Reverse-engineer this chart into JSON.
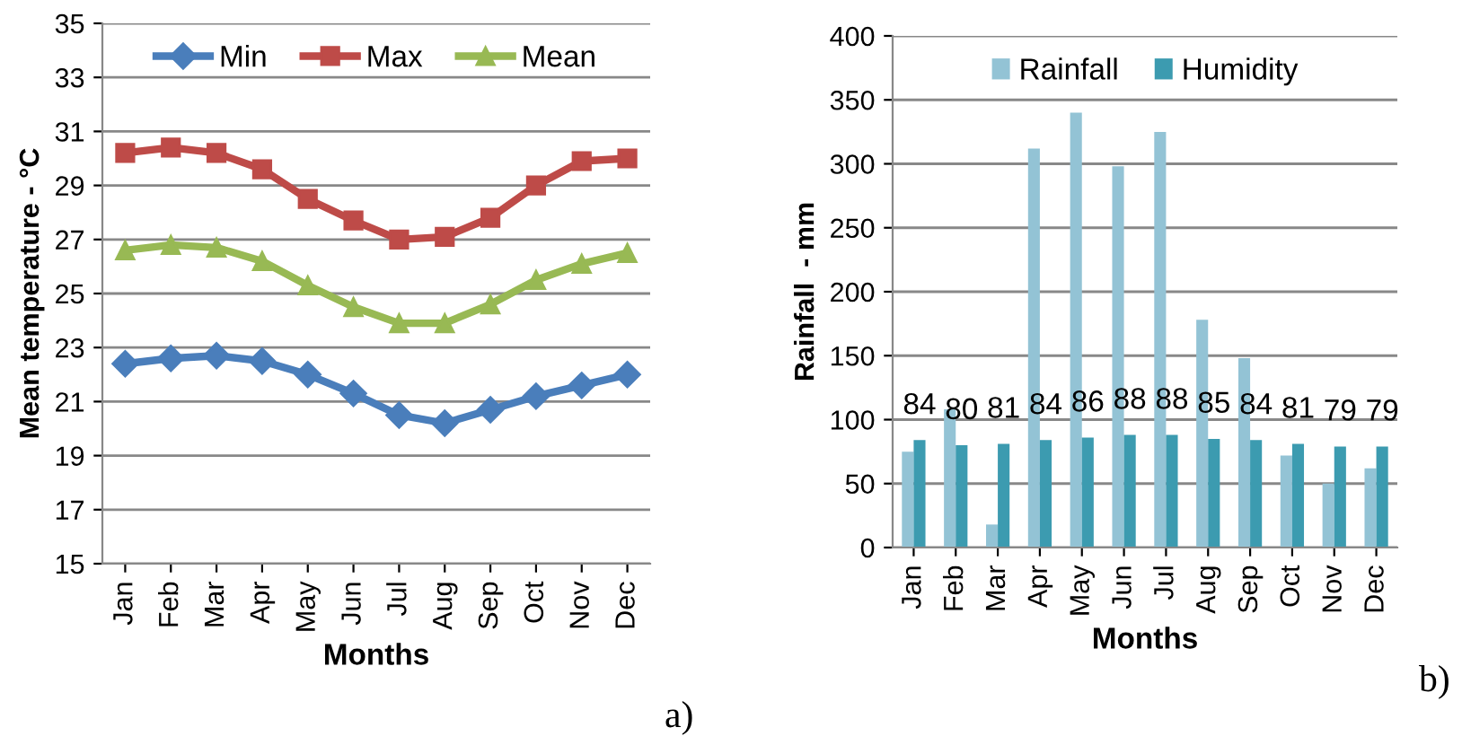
{
  "chart_data": [
    {
      "type": "line",
      "ylabel": "Mean temperature - °C",
      "xlabel": "Months",
      "categories": [
        "Jan",
        "Feb",
        "Mar",
        "Apr",
        "May",
        "Jun",
        "Jul",
        "Aug",
        "Sep",
        "Oct",
        "Nov",
        "Dec"
      ],
      "series": [
        {
          "name": "Min",
          "color": "#4a7ebb",
          "marker": "diamond",
          "values": [
            22.4,
            22.6,
            22.7,
            22.5,
            22.0,
            21.3,
            20.5,
            20.2,
            20.7,
            21.2,
            21.6,
            22.0
          ]
        },
        {
          "name": "Max",
          "color": "#be4b48",
          "marker": "square",
          "values": [
            30.2,
            30.4,
            30.2,
            29.6,
            28.5,
            27.7,
            27.0,
            27.1,
            27.8,
            29.0,
            29.9,
            30.0
          ]
        },
        {
          "name": "Mean",
          "color": "#98b954",
          "marker": "triangle",
          "values": [
            26.6,
            26.8,
            26.7,
            26.2,
            25.3,
            24.5,
            23.9,
            23.9,
            24.6,
            25.5,
            26.1,
            26.5
          ]
        }
      ],
      "ylim": [
        15,
        35
      ],
      "yticks": [
        15,
        17,
        19,
        21,
        23,
        25,
        27,
        29,
        31,
        33,
        35
      ],
      "grid": "y",
      "legend": "top",
      "annotations": [
        "a)"
      ]
    },
    {
      "type": "bar",
      "ylabel": "Rainfall  - mm",
      "xlabel": "Months",
      "categories": [
        "Jan",
        "Feb",
        "Mar",
        "Apr",
        "May",
        "Jun",
        "Jul",
        "Aug",
        "Sep",
        "Oct",
        "Nov",
        "Dec"
      ],
      "series": [
        {
          "name": "Rainfall",
          "color": "#93c3d5",
          "values": [
            75,
            108,
            18,
            312,
            340,
            298,
            325,
            178,
            148,
            72,
            50,
            62
          ]
        },
        {
          "name": "Humidity",
          "color": "#3c9bb0",
          "values": [
            84,
            80,
            81,
            84,
            86,
            88,
            88,
            85,
            84,
            81,
            79,
            79
          ],
          "value_labels": [
            "84",
            "80",
            "81",
            "84",
            "86",
            "88",
            "88",
            "85",
            "84",
            "81",
            "79",
            "79"
          ]
        }
      ],
      "ylim": [
        0,
        400
      ],
      "yticks": [
        0,
        50,
        100,
        150,
        200,
        250,
        300,
        350,
        400
      ],
      "grid": "y",
      "legend": "top",
      "annotations": [
        "b)"
      ]
    }
  ]
}
